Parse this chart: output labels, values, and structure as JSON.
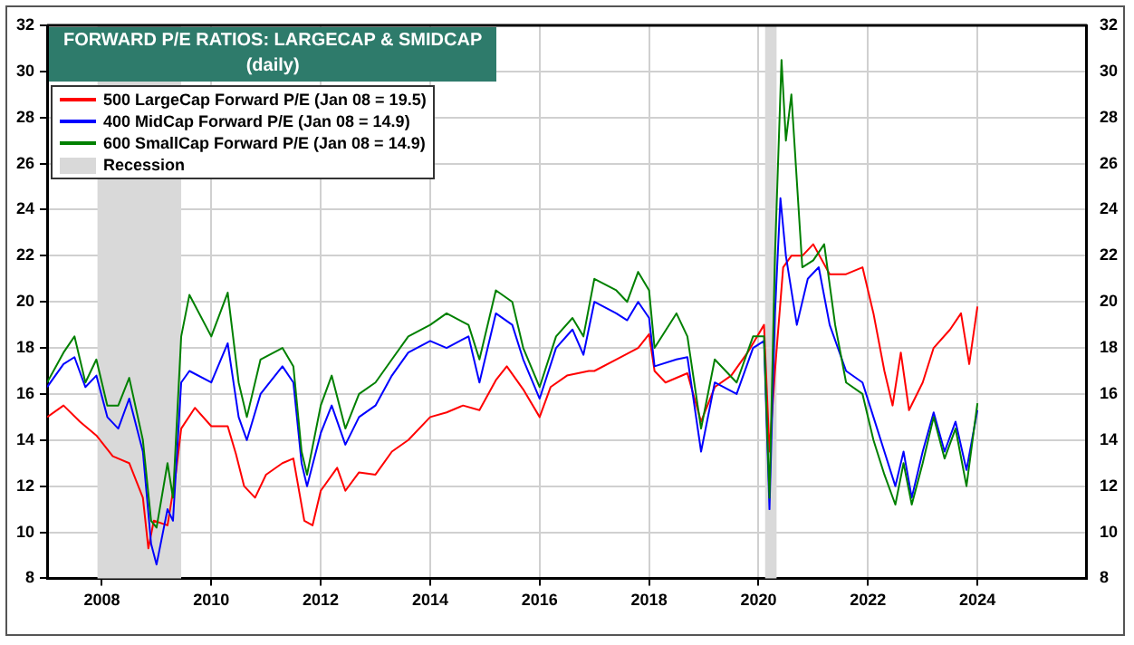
{
  "chart_data": {
    "type": "line",
    "title": "FORWARD P/E RATIOS: LARGECAP & SMIDCAP",
    "subtitle": "(daily)",
    "xlim": [
      2007.0,
      2026.0
    ],
    "xticks": [
      2008,
      2010,
      2012,
      2014,
      2016,
      2018,
      2020,
      2022,
      2024
    ],
    "ylim": [
      8,
      32
    ],
    "yticks": [
      8,
      10,
      12,
      14,
      16,
      18,
      20,
      22,
      24,
      26,
      28,
      30,
      32
    ],
    "y2lim": [
      8,
      32
    ],
    "y2ticks": [
      8,
      10,
      12,
      14,
      16,
      18,
      20,
      22,
      24,
      26,
      28,
      30,
      32
    ],
    "grid": true,
    "legend": "top left",
    "marker": "none",
    "line_style": "solid",
    "bands": [
      {
        "axis": "x",
        "from": 2007.92,
        "to": 2009.45,
        "label": "Recession",
        "color": "#d9d9d9"
      },
      {
        "axis": "x",
        "from": 2020.12,
        "to": 2020.33,
        "color": "#d9d9d9"
      }
    ],
    "series": [
      {
        "name": "500 LargeCap Forward P/E (Jan 08 = 19.5)",
        "color": "#ff0000",
        "x": [
          2007.0,
          2007.3,
          2007.6,
          2007.9,
          2008.2,
          2008.5,
          2008.75,
          2008.85,
          2008.95,
          2009.2,
          2009.35,
          2009.45,
          2009.7,
          2010.0,
          2010.3,
          2010.45,
          2010.6,
          2010.8,
          2011.0,
          2011.3,
          2011.5,
          2011.7,
          2011.85,
          2012.0,
          2012.3,
          2012.45,
          2012.7,
          2013.0,
          2013.3,
          2013.6,
          2014.0,
          2014.3,
          2014.6,
          2014.9,
          2015.2,
          2015.4,
          2015.7,
          2016.0,
          2016.2,
          2016.5,
          2016.9,
          2017.0,
          2017.4,
          2017.8,
          2018.0,
          2018.1,
          2018.3,
          2018.7,
          2018.95,
          2019.2,
          2019.5,
          2019.8,
          2020.1,
          2020.2,
          2020.3,
          2020.45,
          2020.6,
          2020.8,
          2021.0,
          2021.3,
          2021.6,
          2021.9,
          2022.1,
          2022.3,
          2022.45,
          2022.6,
          2022.75,
          2023.0,
          2023.2,
          2023.5,
          2023.7,
          2023.85,
          2024.0
        ],
        "values": [
          15.0,
          15.5,
          14.8,
          14.2,
          13.3,
          13.0,
          11.5,
          9.3,
          10.5,
          10.3,
          12.5,
          14.5,
          15.4,
          14.6,
          14.6,
          13.4,
          12.0,
          11.5,
          12.5,
          13.0,
          13.2,
          10.5,
          10.3,
          11.8,
          12.8,
          11.8,
          12.6,
          12.5,
          13.5,
          14.0,
          15.0,
          15.2,
          15.5,
          15.3,
          16.6,
          17.2,
          16.2,
          15.0,
          16.3,
          16.8,
          17.0,
          17.0,
          17.5,
          18.0,
          18.6,
          17.0,
          16.5,
          16.9,
          14.8,
          16.3,
          16.8,
          17.8,
          19.0,
          13.5,
          17.0,
          21.5,
          22.0,
          22.0,
          22.5,
          21.2,
          21.2,
          21.5,
          19.5,
          17.0,
          15.5,
          17.8,
          15.3,
          16.5,
          18.0,
          18.8,
          19.5,
          17.3,
          19.8
        ]
      },
      {
        "name": "400 MidCap Forward P/E (Jan 08 = 14.9)",
        "color": "#0000ff",
        "x": [
          2007.0,
          2007.3,
          2007.5,
          2007.7,
          2007.9,
          2008.1,
          2008.3,
          2008.5,
          2008.75,
          2008.9,
          2009.0,
          2009.2,
          2009.3,
          2009.45,
          2009.6,
          2010.0,
          2010.3,
          2010.5,
          2010.65,
          2010.9,
          2011.3,
          2011.5,
          2011.65,
          2011.75,
          2012.0,
          2012.2,
          2012.45,
          2012.7,
          2013.0,
          2013.3,
          2013.6,
          2014.0,
          2014.3,
          2014.7,
          2014.9,
          2015.2,
          2015.5,
          2015.7,
          2016.0,
          2016.3,
          2016.6,
          2016.8,
          2017.0,
          2017.4,
          2017.6,
          2017.8,
          2018.0,
          2018.1,
          2018.5,
          2018.7,
          2018.95,
          2019.2,
          2019.6,
          2019.9,
          2020.1,
          2020.2,
          2020.3,
          2020.4,
          2020.5,
          2020.7,
          2020.9,
          2021.1,
          2021.3,
          2021.6,
          2021.9,
          2022.1,
          2022.3,
          2022.5,
          2022.65,
          2022.8,
          2023.0,
          2023.2,
          2023.4,
          2023.6,
          2023.8,
          2024.0
        ],
        "values": [
          16.3,
          17.3,
          17.6,
          16.3,
          16.8,
          15.0,
          14.5,
          15.8,
          13.5,
          9.5,
          8.6,
          11.0,
          10.5,
          16.5,
          17.0,
          16.5,
          18.2,
          15.0,
          14.0,
          16.0,
          17.2,
          16.5,
          13.0,
          12.0,
          14.3,
          15.5,
          13.8,
          15.0,
          15.5,
          16.8,
          17.8,
          18.3,
          18.0,
          18.5,
          16.5,
          19.5,
          19.0,
          17.5,
          15.8,
          18.0,
          18.8,
          17.7,
          20.0,
          19.5,
          19.2,
          20.0,
          19.3,
          17.2,
          17.5,
          17.6,
          13.5,
          16.5,
          16.0,
          18.0,
          18.3,
          11.0,
          19.5,
          24.5,
          22.0,
          19.0,
          21.0,
          21.5,
          19.0,
          17.0,
          16.5,
          15.0,
          13.5,
          12.0,
          13.5,
          11.5,
          13.5,
          15.2,
          13.5,
          14.8,
          12.7,
          15.3
        ]
      },
      {
        "name": "600 SmallCap Forward P/E (Jan 08 = 14.9)",
        "color": "#008000",
        "x": [
          2007.0,
          2007.3,
          2007.5,
          2007.7,
          2007.9,
          2008.1,
          2008.3,
          2008.5,
          2008.75,
          2008.9,
          2009.0,
          2009.2,
          2009.3,
          2009.45,
          2009.6,
          2010.0,
          2010.3,
          2010.5,
          2010.65,
          2010.9,
          2011.3,
          2011.5,
          2011.65,
          2011.75,
          2012.0,
          2012.2,
          2012.45,
          2012.7,
          2013.0,
          2013.3,
          2013.6,
          2014.0,
          2014.3,
          2014.7,
          2014.9,
          2015.2,
          2015.5,
          2015.7,
          2016.0,
          2016.3,
          2016.6,
          2016.8,
          2017.0,
          2017.4,
          2017.6,
          2017.8,
          2018.0,
          2018.1,
          2018.5,
          2018.7,
          2018.95,
          2019.2,
          2019.6,
          2019.9,
          2020.1,
          2020.2,
          2020.3,
          2020.42,
          2020.5,
          2020.6,
          2020.8,
          2021.0,
          2021.2,
          2021.4,
          2021.6,
          2021.9,
          2022.1,
          2022.3,
          2022.5,
          2022.65,
          2022.8,
          2023.0,
          2023.2,
          2023.4,
          2023.6,
          2023.8,
          2024.0
        ],
        "values": [
          16.5,
          17.8,
          18.5,
          16.5,
          17.5,
          15.5,
          15.5,
          16.7,
          14.0,
          10.5,
          10.2,
          13.0,
          11.5,
          18.5,
          20.3,
          18.5,
          20.4,
          16.5,
          15.0,
          17.5,
          18.0,
          17.2,
          13.5,
          12.5,
          15.5,
          16.8,
          14.5,
          16.0,
          16.5,
          17.5,
          18.5,
          19.0,
          19.5,
          19.0,
          17.5,
          20.5,
          20.0,
          18.0,
          16.3,
          18.5,
          19.3,
          18.5,
          21.0,
          20.5,
          20.0,
          21.3,
          20.5,
          18.0,
          19.5,
          18.5,
          14.5,
          17.5,
          16.5,
          18.5,
          18.5,
          11.5,
          22.0,
          30.5,
          27.0,
          29.0,
          21.5,
          21.8,
          22.5,
          19.0,
          16.5,
          16.0,
          14.0,
          12.5,
          11.2,
          13.0,
          11.2,
          13.0,
          15.0,
          13.2,
          14.5,
          12.0,
          15.6
        ]
      }
    ]
  }
}
